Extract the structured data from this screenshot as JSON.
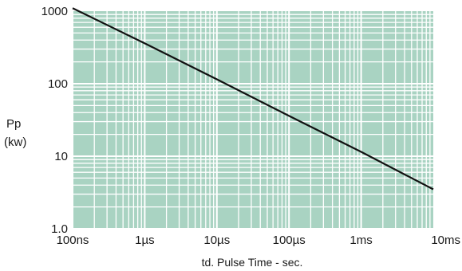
{
  "chart_data": {
    "type": "line",
    "title": "",
    "xlabel": "td. Pulse Time - sec.",
    "ylabel_lines": [
      "Pp",
      "(kw)"
    ],
    "x_scale": "log",
    "y_scale": "log",
    "xlim": [
      1e-07,
      0.01
    ],
    "ylim": [
      1,
      1000
    ],
    "x_ticks": [
      {
        "value": 1e-07,
        "label": "100ns"
      },
      {
        "value": 1e-06,
        "label": "1µs"
      },
      {
        "value": 1e-05,
        "label": "10µs"
      },
      {
        "value": 0.0001,
        "label": "100µs"
      },
      {
        "value": 0.001,
        "label": "1ms"
      },
      {
        "value": 0.01,
        "label": "10ms"
      }
    ],
    "y_ticks": [
      {
        "value": 1,
        "label": "1.0"
      },
      {
        "value": 10,
        "label": "10"
      },
      {
        "value": 100,
        "label": "100"
      },
      {
        "value": 1000,
        "label": "1000"
      }
    ],
    "grid": true,
    "colors": {
      "plot_background": "#a9d3c2",
      "grid": "#ffffff",
      "line": "#111111"
    },
    "series": [
      {
        "x": [
          1e-07,
          1e-06,
          1e-05,
          0.0001,
          0.001,
          0.01
        ],
        "y": [
          1100,
          360,
          115,
          36,
          11.5,
          3.5
        ]
      }
    ]
  }
}
